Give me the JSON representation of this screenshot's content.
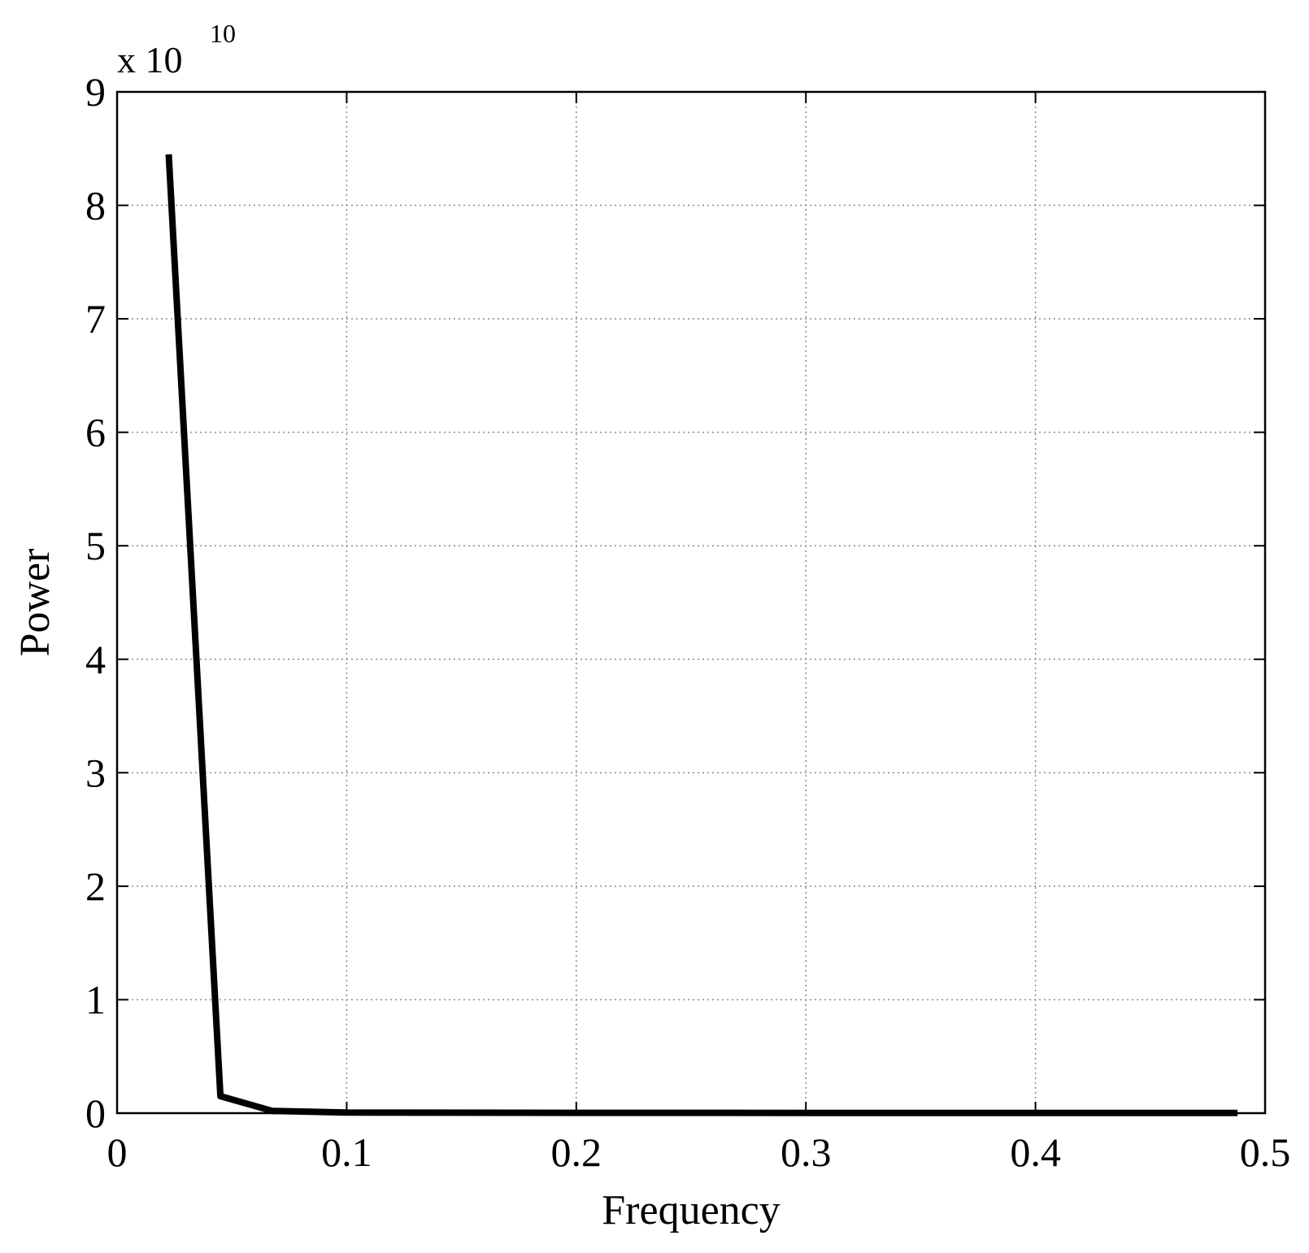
{
  "chart_data": {
    "type": "line",
    "xlabel": "Frequency",
    "ylabel": "Power",
    "y_multiplier": {
      "base": "x 10",
      "exponent": "10"
    },
    "xlim": [
      0,
      0.5
    ],
    "ylim": [
      0,
      9
    ],
    "x_ticks": [
      0,
      0.1,
      0.2,
      0.3,
      0.4,
      0.5
    ],
    "x_tick_labels": [
      "0",
      "0.1",
      "0.2",
      "0.3",
      "0.4",
      "0.5"
    ],
    "y_ticks": [
      0,
      1,
      2,
      3,
      4,
      5,
      6,
      7,
      8,
      9
    ],
    "y_tick_labels": [
      "0",
      "1",
      "2",
      "3",
      "4",
      "5",
      "6",
      "7",
      "8",
      "9"
    ],
    "grid": true,
    "series": [
      {
        "color": "#000000",
        "x": [
          0.0225,
          0.045,
          0.0675,
          0.09,
          0.1,
          0.2,
          0.3,
          0.4,
          0.488
        ],
        "y": [
          8.45,
          0.15,
          0.02,
          0.01,
          0.005,
          0.003,
          0.002,
          0.002,
          0.002
        ]
      }
    ]
  }
}
